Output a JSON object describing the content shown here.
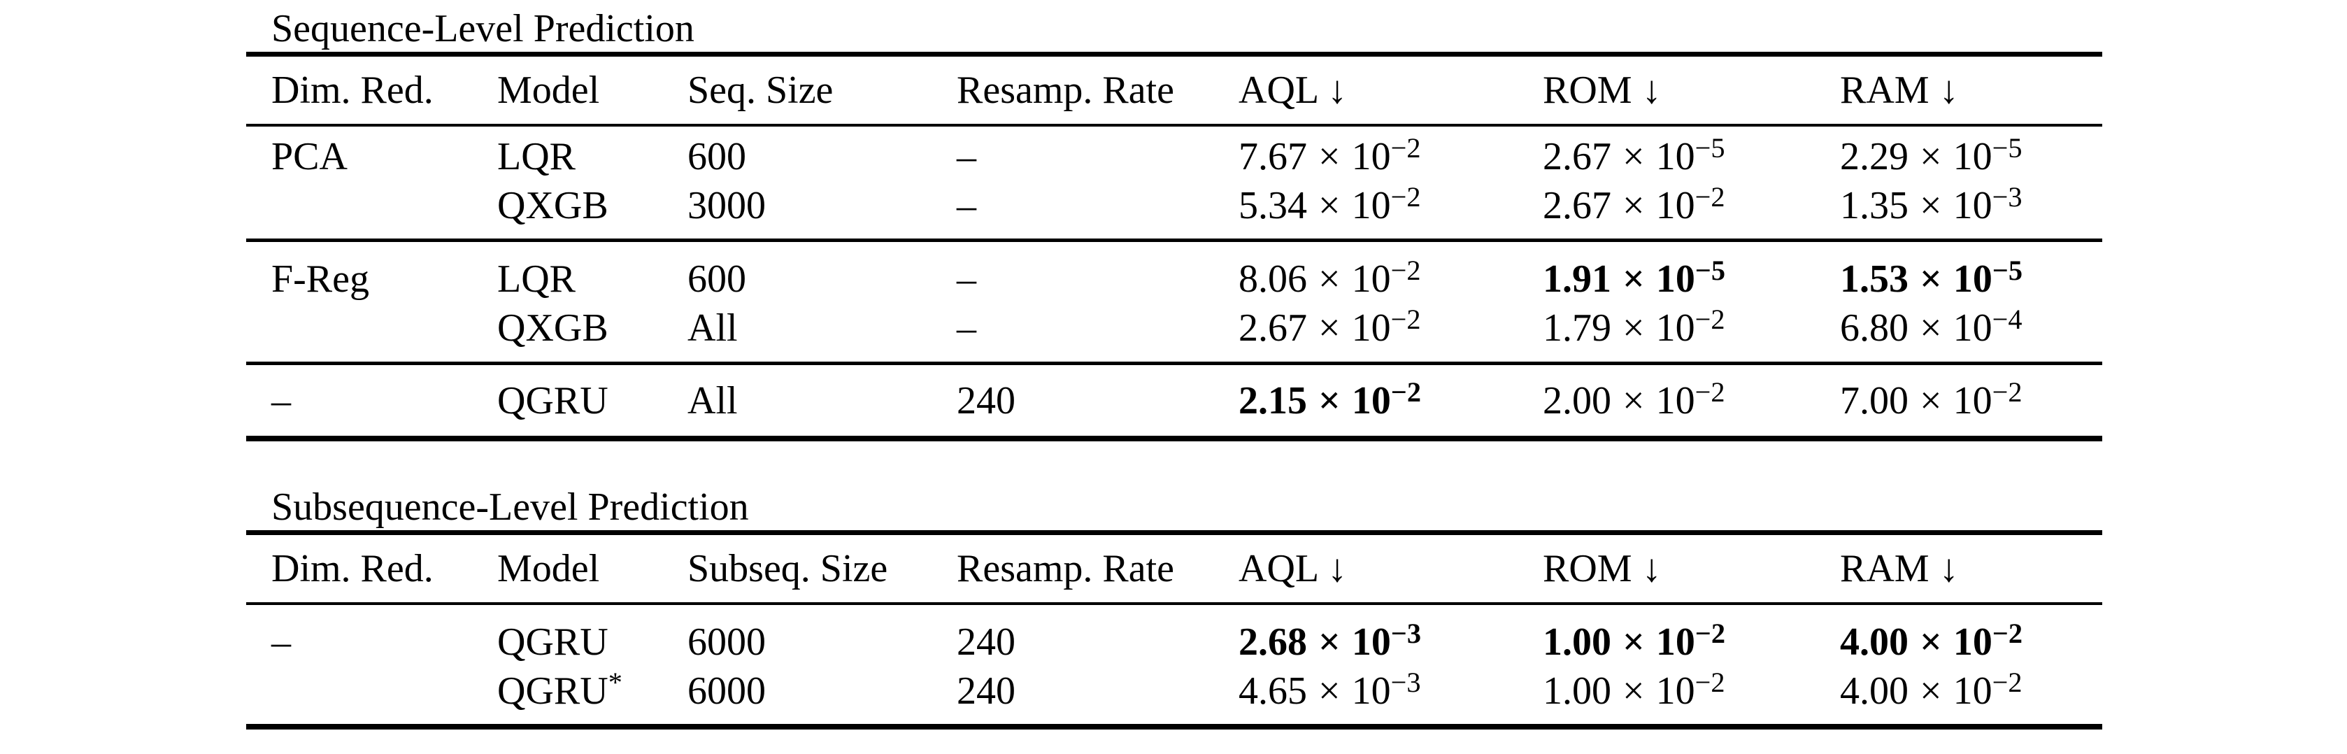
{
  "notation": {
    "times": "×",
    "base": "10"
  },
  "tables": [
    {
      "title": "Sequence-Level Prediction",
      "columns": [
        "Dim. Red.",
        "Model",
        "Seq. Size",
        "Resamp. Rate",
        "AQL ↓",
        "ROM ↓",
        "RAM ↓"
      ],
      "groups": [
        {
          "rows": [
            {
              "cells": [
                {
                  "t": "PCA"
                },
                {
                  "t": "LQR"
                },
                {
                  "t": "600"
                },
                {
                  "t": "–"
                },
                {
                  "sci": {
                    "m": "7.67",
                    "e": "−2",
                    "bold": false
                  }
                },
                {
                  "sci": {
                    "m": "2.67",
                    "e": "−5",
                    "bold": false
                  }
                },
                {
                  "sci": {
                    "m": "2.29",
                    "e": "−5",
                    "bold": false
                  }
                }
              ]
            },
            {
              "cells": [
                {
                  "t": ""
                },
                {
                  "t": "QXGB"
                },
                {
                  "t": "3000"
                },
                {
                  "t": "–"
                },
                {
                  "sci": {
                    "m": "5.34",
                    "e": "−2",
                    "bold": false
                  }
                },
                {
                  "sci": {
                    "m": "2.67",
                    "e": "−2",
                    "bold": false
                  }
                },
                {
                  "sci": {
                    "m": "1.35",
                    "e": "−3",
                    "bold": false
                  }
                }
              ]
            }
          ]
        },
        {
          "rows": [
            {
              "cells": [
                {
                  "t": "F-Reg"
                },
                {
                  "t": "LQR"
                },
                {
                  "t": "600"
                },
                {
                  "t": "–"
                },
                {
                  "sci": {
                    "m": "8.06",
                    "e": "−2",
                    "bold": false
                  }
                },
                {
                  "sci": {
                    "m": "1.91",
                    "e": "−5",
                    "bold": true
                  }
                },
                {
                  "sci": {
                    "m": "1.53",
                    "e": "−5",
                    "bold": true
                  }
                }
              ]
            },
            {
              "cells": [
                {
                  "t": ""
                },
                {
                  "t": "QXGB"
                },
                {
                  "t": "All"
                },
                {
                  "t": "–"
                },
                {
                  "sci": {
                    "m": "2.67",
                    "e": "−2",
                    "bold": false
                  }
                },
                {
                  "sci": {
                    "m": "1.79",
                    "e": "−2",
                    "bold": false
                  }
                },
                {
                  "sci": {
                    "m": "6.80",
                    "e": "−4",
                    "bold": false
                  }
                }
              ]
            }
          ]
        },
        {
          "rows": [
            {
              "cells": [
                {
                  "t": "–"
                },
                {
                  "t": "QGRU"
                },
                {
                  "t": "All"
                },
                {
                  "t": "240"
                },
                {
                  "sci": {
                    "m": "2.15",
                    "e": "−2",
                    "bold": true
                  }
                },
                {
                  "sci": {
                    "m": "2.00",
                    "e": "−2",
                    "bold": false
                  }
                },
                {
                  "sci": {
                    "m": "7.00",
                    "e": "−2",
                    "bold": false
                  }
                }
              ]
            }
          ]
        }
      ]
    },
    {
      "title": "Subsequence-Level Prediction",
      "columns": [
        "Dim. Red.",
        "Model",
        "Subseq. Size",
        "Resamp. Rate",
        "AQL ↓",
        "ROM ↓",
        "RAM ↓"
      ],
      "groups": [
        {
          "rows": [
            {
              "cells": [
                {
                  "t": "–"
                },
                {
                  "t": "QGRU"
                },
                {
                  "t": "6000"
                },
                {
                  "t": "240"
                },
                {
                  "sci": {
                    "m": "2.68",
                    "e": "−3",
                    "bold": true
                  }
                },
                {
                  "sci": {
                    "m": "1.00",
                    "e": "−2",
                    "bold": true
                  }
                },
                {
                  "sci": {
                    "m": "4.00",
                    "e": "−2",
                    "bold": true
                  }
                }
              ]
            },
            {
              "cells": [
                {
                  "t": ""
                },
                {
                  "t": "QGRU",
                  "sup": "*"
                },
                {
                  "t": "6000"
                },
                {
                  "t": "240"
                },
                {
                  "sci": {
                    "m": "4.65",
                    "e": "−3",
                    "bold": false
                  }
                },
                {
                  "sci": {
                    "m": "1.00",
                    "e": "−2",
                    "bold": false
                  }
                },
                {
                  "sci": {
                    "m": "4.00",
                    "e": "−2",
                    "bold": false
                  }
                }
              ]
            }
          ]
        }
      ]
    }
  ]
}
